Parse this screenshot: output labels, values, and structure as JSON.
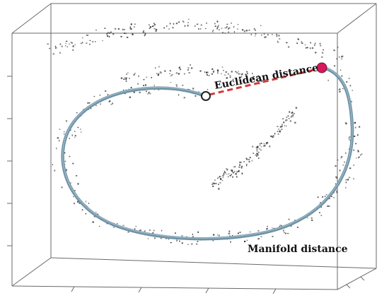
{
  "labels": {
    "euclidean": "Euclidean distance",
    "manifold": "Manifold distance"
  },
  "colors": {
    "box": "#6a6a6a",
    "points": "#3a3a3a",
    "manifold_path": "#6f93a6",
    "euclidean_line": "#d23a3a",
    "start_point_fill": "#ffffff",
    "start_point_stroke": "#222222",
    "end_point_fill": "#d6195c"
  }
}
